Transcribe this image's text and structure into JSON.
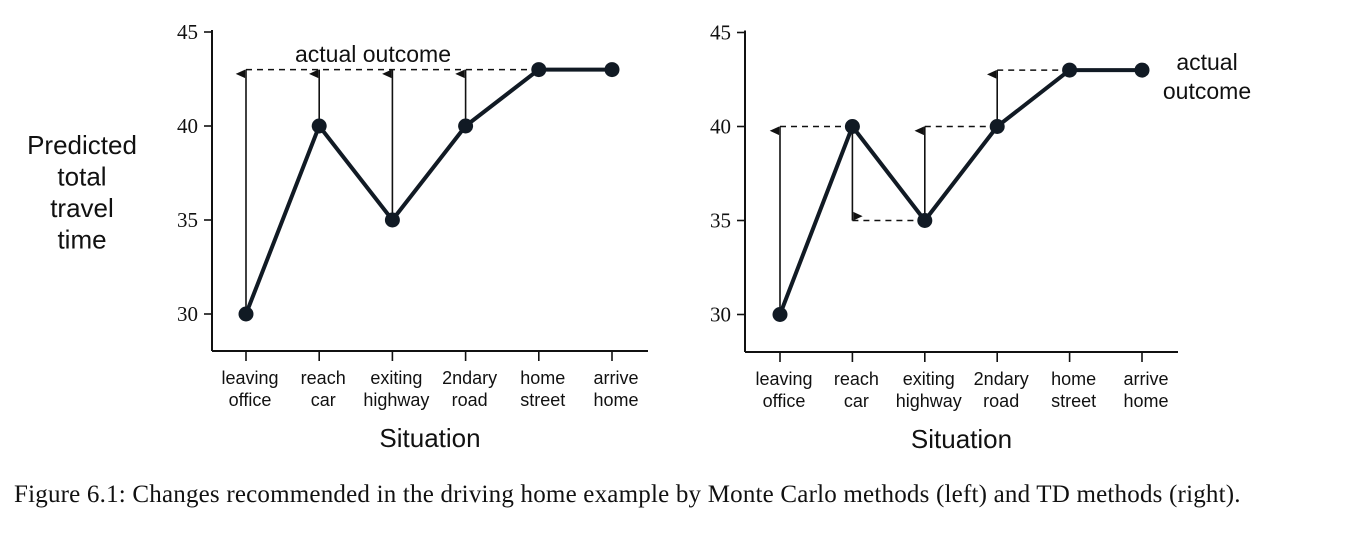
{
  "chart_data": [
    {
      "type": "line",
      "panel": "left",
      "method": "Monte Carlo",
      "ylabel": [
        "Predicted",
        "total",
        "travel",
        "time"
      ],
      "xlabel": "Situation",
      "ylim": [
        28,
        45
      ],
      "yticks": [
        30,
        35,
        40,
        45
      ],
      "categories": [
        [
          "leaving",
          "office"
        ],
        [
          "reach",
          "car"
        ],
        [
          "exiting",
          "highway"
        ],
        [
          "2ndary",
          "road"
        ],
        [
          "home",
          "street"
        ],
        [
          "arrive",
          "home"
        ]
      ],
      "values": [
        30,
        40,
        35,
        40,
        43,
        43
      ],
      "actual_outcome": 43,
      "annotation": [
        "actual outcome"
      ],
      "arrows": [
        {
          "from_index": 0,
          "from": 30,
          "to": 43
        },
        {
          "from_index": 1,
          "from": 40,
          "to": 43
        },
        {
          "from_index": 2,
          "from": 35,
          "to": 43
        },
        {
          "from_index": 3,
          "from": 40,
          "to": 43
        }
      ],
      "dashed": [
        {
          "from_index": 0,
          "to_index": 4,
          "y": 43
        }
      ]
    },
    {
      "type": "line",
      "panel": "right",
      "method": "TD",
      "ylabel": [],
      "xlabel": "Situation",
      "ylim": [
        28,
        45
      ],
      "yticks": [
        30,
        35,
        40,
        45
      ],
      "categories": [
        [
          "leaving",
          "office"
        ],
        [
          "reach",
          "car"
        ],
        [
          "exiting",
          "highway"
        ],
        [
          "2ndary",
          "road"
        ],
        [
          "home",
          "street"
        ],
        [
          "arrive",
          "home"
        ]
      ],
      "values": [
        30,
        40,
        35,
        40,
        43,
        43
      ],
      "actual_outcome": 43,
      "annotation": [
        "actual",
        "outcome"
      ],
      "arrows": [
        {
          "from_index": 0,
          "from": 30,
          "to": 40
        },
        {
          "from_index": 1,
          "from": 40,
          "to": 35
        },
        {
          "from_index": 2,
          "from": 35,
          "to": 40
        },
        {
          "from_index": 3,
          "from": 40,
          "to": 43
        }
      ],
      "dashed": [
        {
          "from_index": 0,
          "to_index": 1,
          "y": 40
        },
        {
          "from_index": 1,
          "to_index": 2,
          "y": 35
        },
        {
          "from_index": 2,
          "to_index": 3,
          "y": 40
        },
        {
          "from_index": 3,
          "to_index": 4,
          "y": 43
        }
      ]
    }
  ],
  "caption": "Figure 6.1: Changes recommended in the driving home example by Monte Carlo methods (left) and TD methods (right)."
}
